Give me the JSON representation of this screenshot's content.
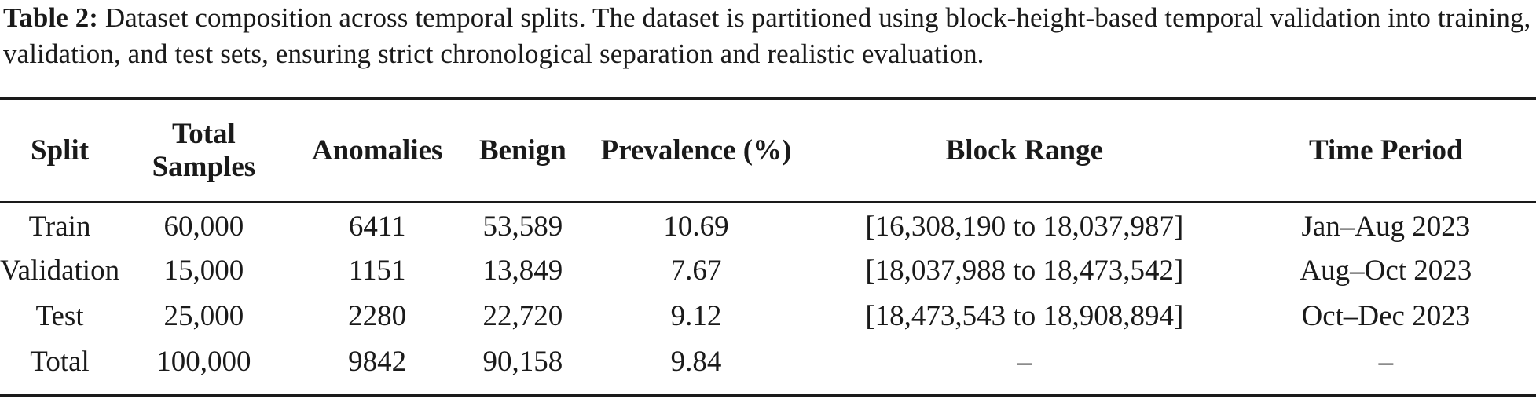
{
  "caption": {
    "label": "Table 2:",
    "text": "Dataset composition across temporal splits. The dataset is partitioned using block-height-based temporal validation into training, validation, and test sets, ensuring strict chronological separation and realistic evaluation."
  },
  "table": {
    "headers": [
      "Split",
      "Total Samples",
      "Anomalies",
      "Benign",
      "Prevalence (%)",
      "Block Range",
      "Time Period"
    ],
    "header_lines": {
      "total_samples_1": "Total",
      "total_samples_2": "Samples"
    },
    "rows": [
      [
        "Train",
        "60,000",
        "6411",
        "53,589",
        "10.69",
        "[16,308,190 to 18,037,987]",
        "Jan–Aug 2023"
      ],
      [
        "Validation",
        "15,000",
        "1151",
        "13,849",
        "7.67",
        "[18,037,988 to 18,473,542]",
        "Aug–Oct 2023"
      ],
      [
        "Test",
        "25,000",
        "2280",
        "22,720",
        "9.12",
        "[18,473,543 to 18,908,894]",
        "Oct–Dec 2023"
      ],
      [
        "Total",
        "100,000",
        "9842",
        "90,158",
        "9.84",
        "–",
        "–"
      ]
    ]
  }
}
